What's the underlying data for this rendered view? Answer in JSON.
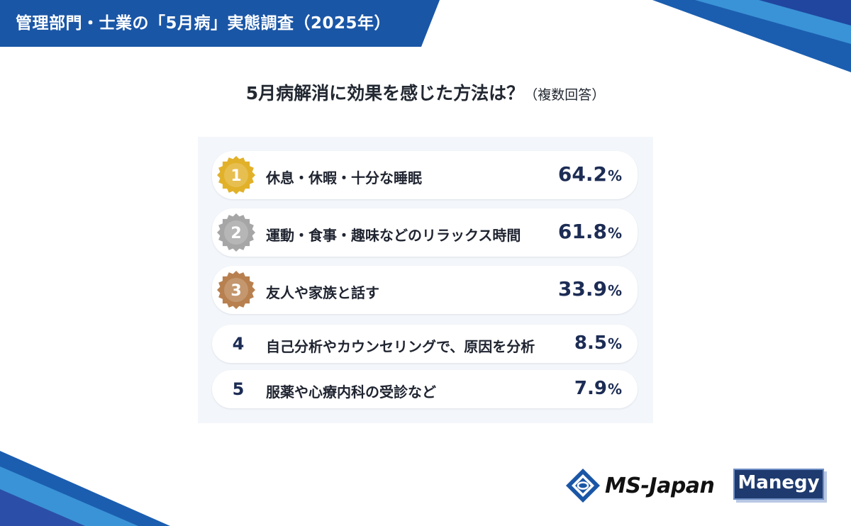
{
  "header": {
    "banner": "管理部門・士業の「5月病」実態調査（2025年）"
  },
  "chart_title": {
    "main": "5月病解消に効果を感じた方法は？",
    "note": "（複数回答）"
  },
  "chart_data": {
    "type": "bar",
    "title": "5月病解消に効果を感じた方法は？（複数回答）",
    "unit": "%",
    "categories": [
      "休息・休暇・十分な睡眠",
      "運動・食事・趣味などのリラックス時間",
      "友人や家族と話す",
      "自己分析やカウンセリングで、原因を分析",
      "服薬や心療内科の受診など"
    ],
    "ranks": [
      "1",
      "2",
      "3",
      "4",
      "5"
    ],
    "values": [
      64.2,
      61.8,
      33.9,
      8.5,
      7.9
    ],
    "value_labels": [
      "64.2",
      "61.8",
      "33.9",
      "8.5",
      "7.9"
    ]
  },
  "colors": {
    "banner": "#1a56a6",
    "gold": "#e2b12a",
    "silver": "#a6a6a6",
    "bronze": "#b8804f",
    "value_text": "#1c2c54",
    "panel": "#f3f6fa"
  },
  "logos": {
    "ms_japan": {
      "text": "MS-Japan",
      "icon": "ms-japan-diamond-icon"
    },
    "manegy": {
      "text": "Manegy"
    }
  }
}
